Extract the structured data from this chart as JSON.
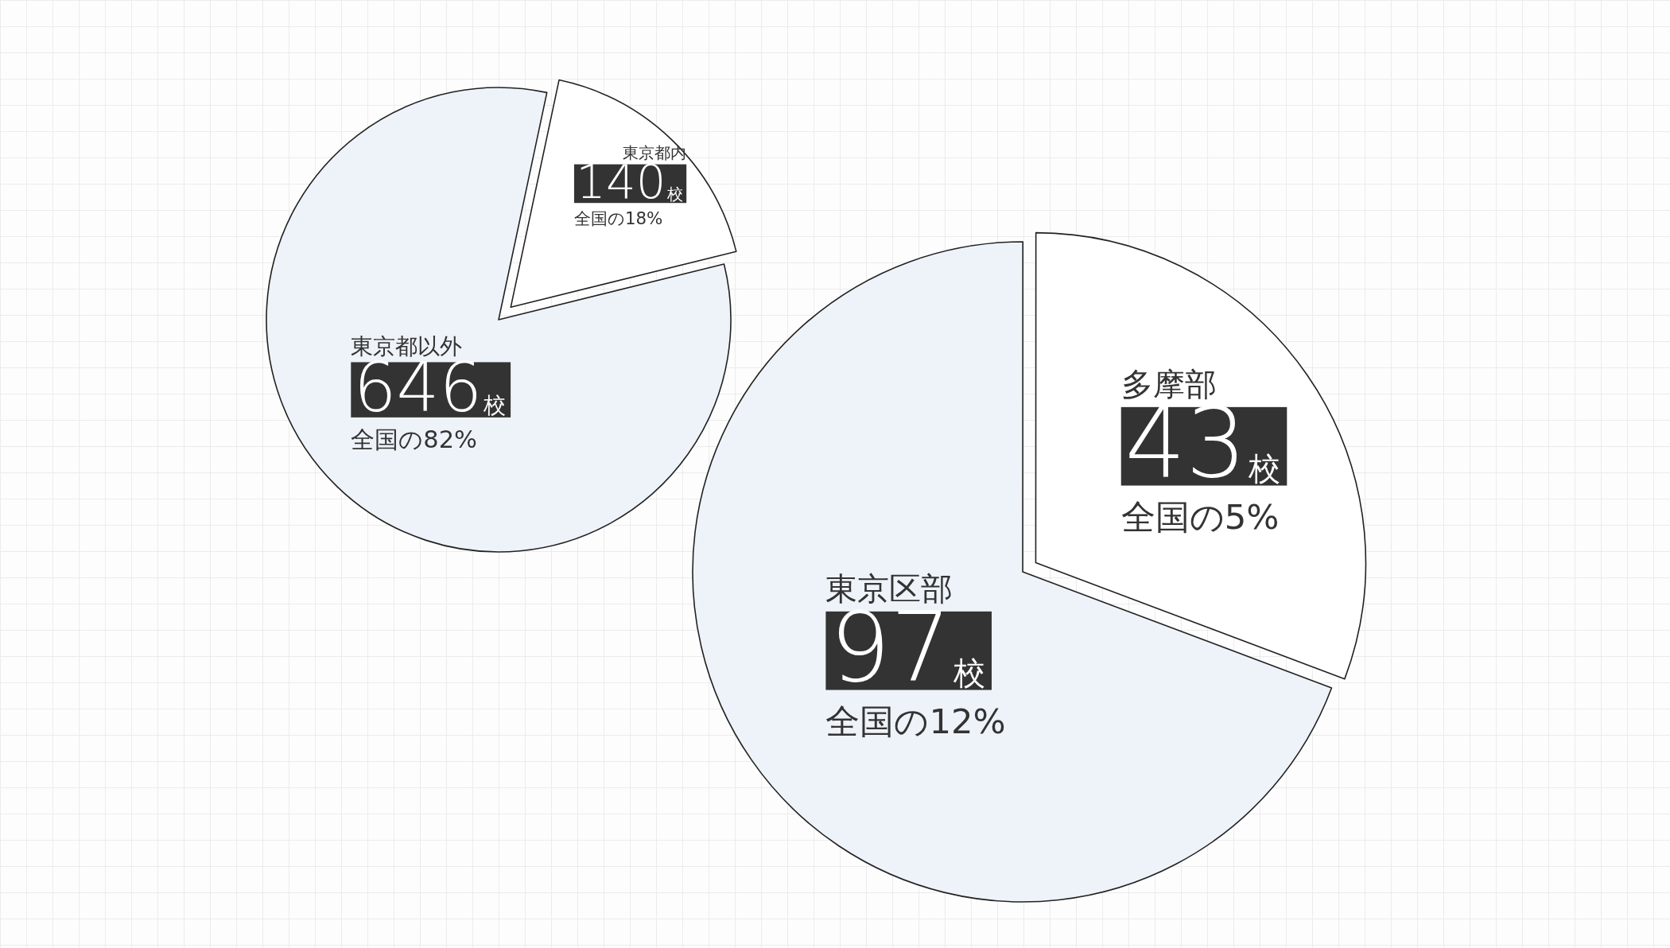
{
  "chart_data": [
    {
      "type": "pie",
      "categories": [
        "東京都内",
        "東京都以外"
      ],
      "values": [
        140,
        646
      ],
      "colors": [
        "#ffffff",
        "#eef3fa"
      ],
      "value_labels": [
        "140校",
        "646校"
      ],
      "annotations": [
        "全国の18%",
        "全国の82%"
      ]
    },
    {
      "type": "pie",
      "categories": [
        "東京区部",
        "多摩部"
      ],
      "values": [
        97,
        43
      ],
      "colors": [
        "#eef3fa",
        "#ffffff"
      ],
      "value_labels": [
        "97校",
        "43校"
      ],
      "annotations": [
        "全国の12%",
        "全国の5%"
      ]
    }
  ]
}
